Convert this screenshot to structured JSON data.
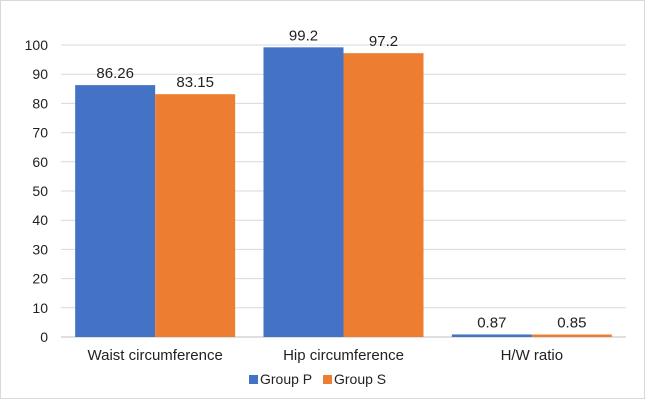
{
  "chart_data": {
    "type": "bar",
    "categories": [
      "Waist circumference",
      "Hip circumference",
      "H/W ratio"
    ],
    "series": [
      {
        "name": "Group P",
        "values": [
          86.26,
          99.2,
          0.87
        ],
        "labels": [
          "86.26",
          "99.2",
          "0.87"
        ],
        "color": "#4472c4"
      },
      {
        "name": "Group S",
        "values": [
          83.15,
          97.2,
          0.85
        ],
        "labels": [
          "83.15",
          "97.2",
          "0.85"
        ],
        "color": "#ed7d31"
      }
    ],
    "ylim": [
      0,
      100
    ],
    "yticks": [
      0,
      10,
      20,
      30,
      40,
      50,
      60,
      70,
      80,
      90,
      100
    ],
    "grid": true,
    "legend_position": "bottom"
  }
}
